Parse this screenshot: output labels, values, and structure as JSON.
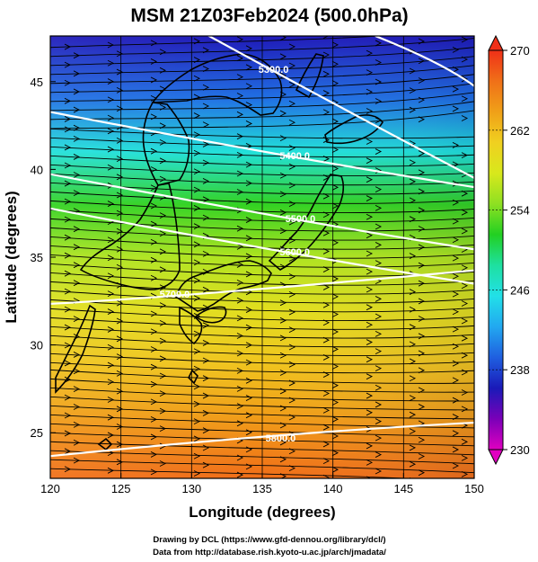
{
  "chart_data": {
    "type": "heatmap",
    "title": "MSM 21Z03Feb2024 (500.0hPa)",
    "xlabel": "Longitude (degrees)",
    "ylabel": "Latitude  (degrees)",
    "xlim": [
      120,
      150
    ],
    "ylim": [
      22.4,
      47.6
    ],
    "xticks": [
      "120",
      "125",
      "130",
      "135",
      "140",
      "145",
      "150"
    ],
    "yticks": [
      "25",
      "30",
      "35",
      "40",
      "45"
    ],
    "colorbar": {
      "range": [
        230,
        270
      ],
      "ticks": [
        "230",
        "238",
        "246",
        "254",
        "262",
        "270"
      ]
    },
    "colormap": [
      "#e000c0",
      "#7a00b8",
      "#1a1ab8",
      "#1f5fe0",
      "#22a8f0",
      "#22e0e8",
      "#1ee0a0",
      "#22d022",
      "#8ee022",
      "#d8e81c",
      "#f0d020",
      "#f0a018",
      "#f07018",
      "#f03018"
    ],
    "temperature_gradient": [
      {
        "lat": 47.6,
        "value": 236
      },
      {
        "lat": 44,
        "value": 240
      },
      {
        "lat": 41,
        "value": 246
      },
      {
        "lat": 38,
        "value": 252
      },
      {
        "lat": 35,
        "value": 256
      },
      {
        "lat": 32,
        "value": 259
      },
      {
        "lat": 29,
        "value": 261.5
      },
      {
        "lat": 26,
        "value": 264
      },
      {
        "lat": 22.4,
        "value": 267
      }
    ],
    "contours": [
      {
        "label": "5300.0",
        "lon": 135.8,
        "lat": 45.7
      },
      {
        "label": "5400.0",
        "lon": 137.3,
        "lat": 40.8
      },
      {
        "label": "5500.0",
        "lon": 137.7,
        "lat": 37.2
      },
      {
        "label": "5600.0",
        "lon": 137.3,
        "lat": 35.3
      },
      {
        "label": "5700.0",
        "lon": 128.8,
        "lat": 32.9
      },
      {
        "label": "5800.0",
        "lon": 136.3,
        "lat": 24.7
      }
    ],
    "flow": "westerly"
  },
  "credits": {
    "line1": "Drawing by DCL (https://www.gfd-dennou.org/library/dcl/)",
    "line2": "Data from http://database.rish.kyoto-u.ac.jp/arch/jmadata/"
  }
}
